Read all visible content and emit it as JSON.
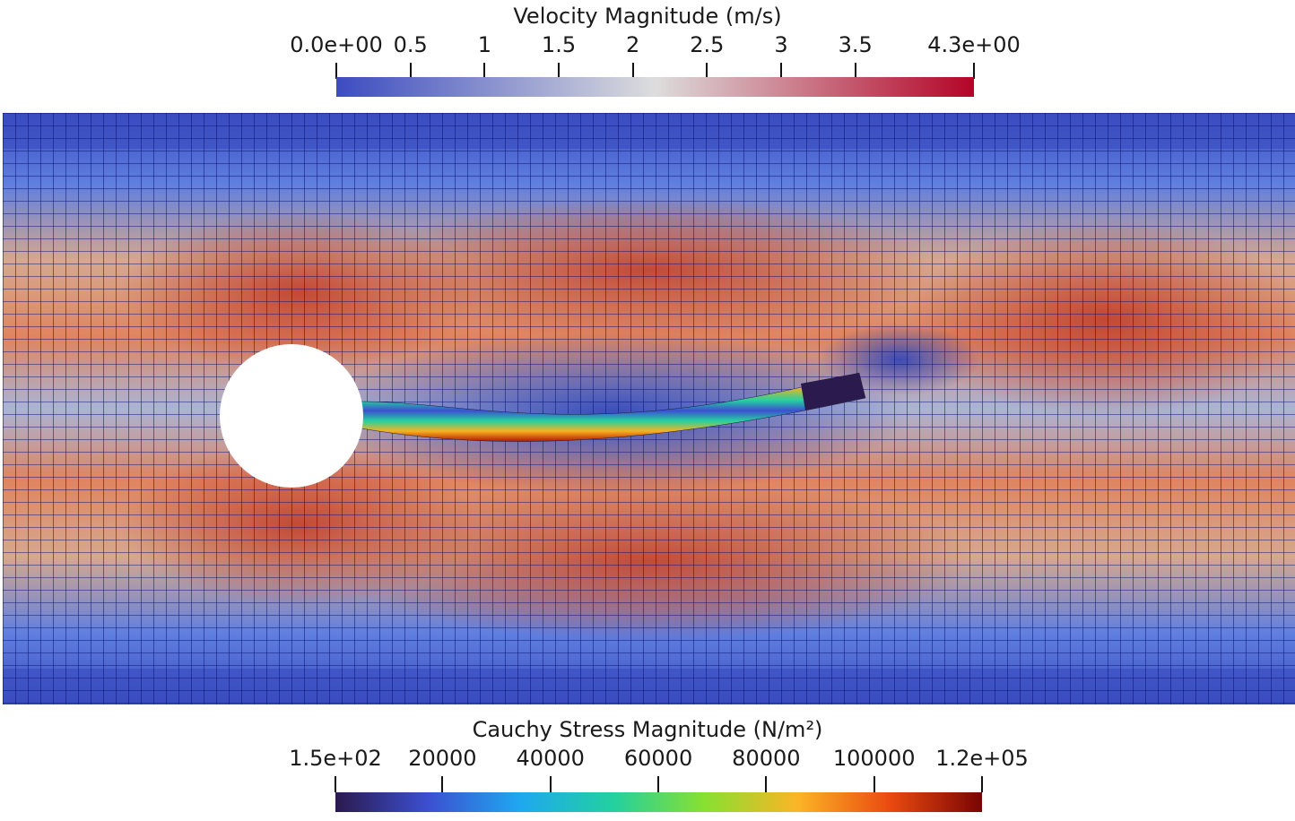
{
  "velocity_legend": {
    "title": "Velocity Magnitude (m/s)",
    "ticks": [
      {
        "label": "0.0e+00",
        "value": 0.0
      },
      {
        "label": "0.5",
        "value": 0.5
      },
      {
        "label": "1",
        "value": 1.0
      },
      {
        "label": "1.5",
        "value": 1.5
      },
      {
        "label": "2",
        "value": 2.0
      },
      {
        "label": "2.5",
        "value": 2.5
      },
      {
        "label": "3",
        "value": 3.0
      },
      {
        "label": "3.5",
        "value": 3.5
      },
      {
        "label": "4.3e+00",
        "value": 4.3
      }
    ],
    "range": [
      0.0,
      4.3
    ],
    "colormap": [
      "#3b4cc0",
      "#dddddd",
      "#b40426"
    ]
  },
  "stress_legend": {
    "title": "Cauchy Stress Magnitude (N/m²)",
    "ticks": [
      {
        "label": "1.5e+02",
        "value": 150
      },
      {
        "label": "20000",
        "value": 20000
      },
      {
        "label": "40000",
        "value": 40000
      },
      {
        "label": "60000",
        "value": 60000
      },
      {
        "label": "80000",
        "value": 80000
      },
      {
        "label": "100000",
        "value": 100000
      },
      {
        "label": "1.2e+05",
        "value": 120000
      }
    ],
    "range": [
      150,
      120000
    ],
    "colormap": [
      "#2b1a4e",
      "#3c4fd0",
      "#1fa8f0",
      "#22d0a0",
      "#88e030",
      "#fbb526",
      "#ea4a10",
      "#7a0403"
    ]
  },
  "colors": {
    "mesh_line": "#0b1578",
    "background": "#ffffff",
    "cylinder": "#ffffff"
  }
}
